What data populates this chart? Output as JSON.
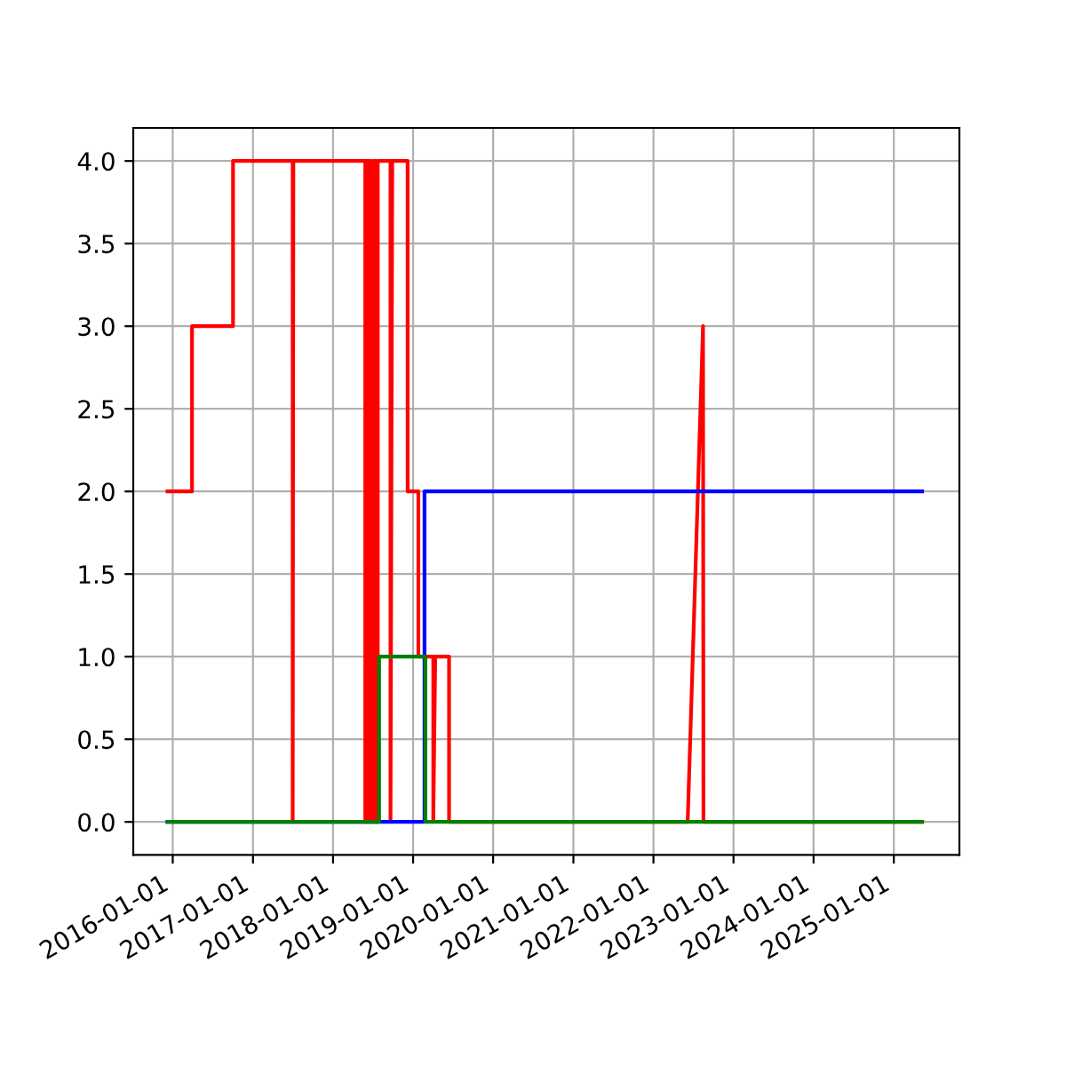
{
  "chart_data": {
    "type": "line",
    "series": [
      {
        "color": "#ff0000",
        "x": [
          "2015-12-08",
          "2016-03-29",
          "2016-03-29",
          "2016-10-02",
          "2016-10-02",
          "2017-07-01",
          "2017-07-01",
          "2017-07-04",
          "2018-05-28",
          "2018-05-28",
          "2018-06-02",
          "2018-06-02",
          "2018-06-08",
          "2018-06-08",
          "2018-06-15",
          "2018-06-15",
          "2018-06-25",
          "2018-06-25",
          "2018-07-05",
          "2018-07-05",
          "2018-07-15",
          "2018-07-15",
          "2018-07-24",
          "2018-07-24",
          "2018-09-20",
          "2018-09-20",
          "2018-09-28",
          "2018-12-07",
          "2018-12-07",
          "2019-01-25",
          "2019-01-25",
          "2019-04-03",
          "2019-04-03",
          "2019-04-12",
          "2019-06-14",
          "2019-06-14",
          "2022-06-06",
          "2022-08-15",
          "2022-08-17",
          "2025-05-10"
        ],
        "values": [
          2,
          2,
          3,
          3,
          4,
          4,
          0,
          4,
          4,
          0,
          0,
          4,
          4,
          0,
          0,
          4,
          4,
          0,
          0,
          4,
          4,
          0,
          0,
          4,
          4,
          0,
          4,
          4,
          2,
          2,
          1,
          1,
          0,
          1,
          1,
          0,
          0,
          3,
          0,
          0
        ]
      },
      {
        "color": "#0000ff",
        "x": [
          "2015-12-08",
          "2019-02-22",
          "2019-02-22",
          "2025-05-10"
        ],
        "values": [
          0,
          0,
          2,
          2
        ]
      },
      {
        "color": "#008000",
        "x": [
          "2015-12-08",
          "2018-07-30",
          "2018-07-30",
          "2019-02-26",
          "2019-02-26",
          "2025-05-10"
        ],
        "values": [
          0,
          0,
          1,
          1,
          0,
          0
        ]
      }
    ],
    "xlim": [
      "2015-07-05",
      "2025-10-27"
    ],
    "xticks": [
      "2016-01-01",
      "2017-01-01",
      "2018-01-01",
      "2019-01-01",
      "2020-01-01",
      "2021-01-01",
      "2022-01-01",
      "2023-01-01",
      "2024-01-01",
      "2025-01-01"
    ],
    "ylim": [
      -0.2,
      4.2
    ],
    "yticks": [
      {
        "value": 0,
        "label": "0.0"
      },
      {
        "value": 0.5,
        "label": "0.5"
      },
      {
        "value": 1,
        "label": "1.0"
      },
      {
        "value": 1.5,
        "label": "1.5"
      },
      {
        "value": 2,
        "label": "2.0"
      },
      {
        "value": 2.5,
        "label": "2.5"
      },
      {
        "value": 3,
        "label": "3.0"
      },
      {
        "value": 3.5,
        "label": "3.5"
      },
      {
        "value": 4,
        "label": "4.0"
      }
    ],
    "grid": true
  }
}
